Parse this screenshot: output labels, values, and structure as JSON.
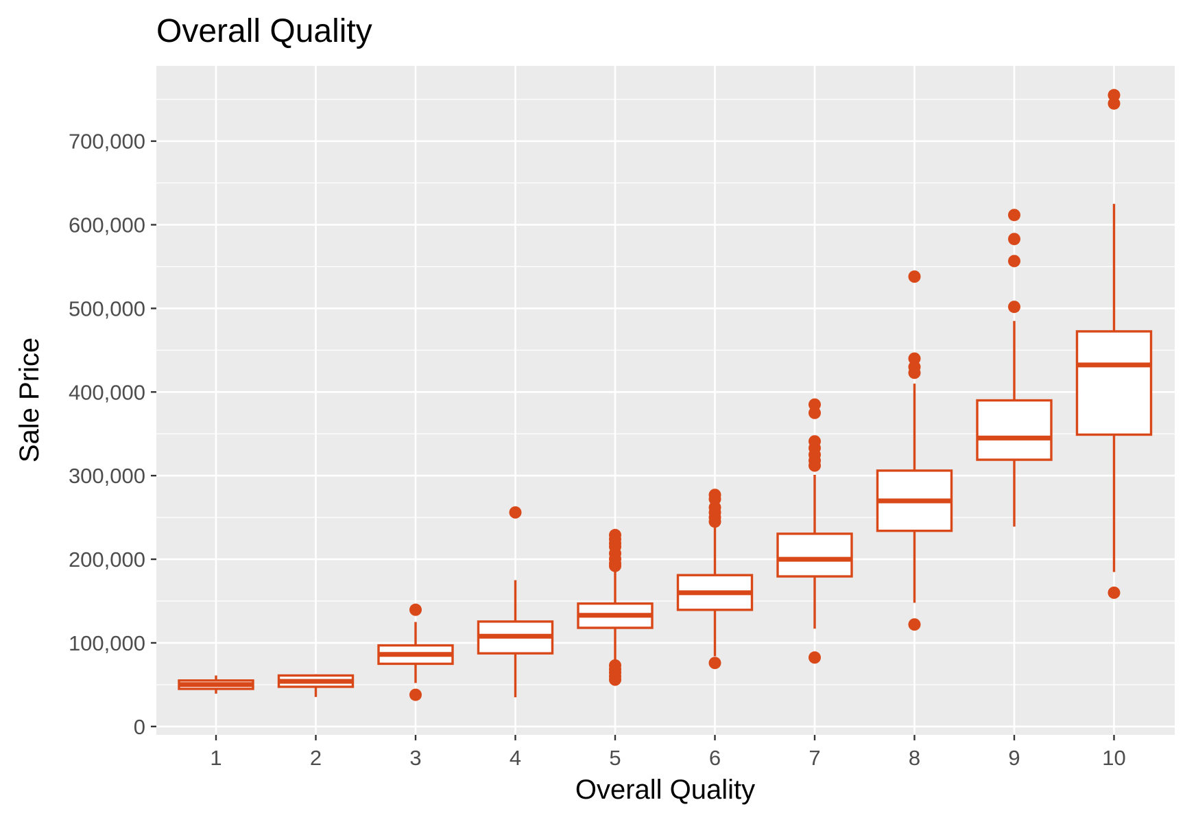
{
  "chart_data": {
    "type": "boxplot",
    "title": "Overall Quality",
    "xlabel": "Overall Quality",
    "ylabel": "Sale Price",
    "categories": [
      "1",
      "2",
      "3",
      "4",
      "5",
      "6",
      "7",
      "8",
      "9",
      "10"
    ],
    "y_ticks": [
      0,
      100000,
      200000,
      300000,
      400000,
      500000,
      600000,
      700000
    ],
    "y_tick_labels": [
      "0",
      "100,000",
      "200,000",
      "300,000",
      "400,000",
      "500,000",
      "600,000",
      "700,000"
    ],
    "ylim": [
      -10000,
      790000
    ],
    "grid": true,
    "colors": {
      "box": "#d94818",
      "panel": "#ebebeb",
      "grid": "#ffffff",
      "axis_text": "#4d4d4d",
      "title_text": "#000000"
    },
    "boxes": [
      {
        "category": "1",
        "min": 39300,
        "q1": 45000,
        "median": 50150,
        "q3": 55000,
        "max": 61000,
        "outliers": []
      },
      {
        "category": "2",
        "min": 35311,
        "q1": 47500,
        "median": 54000,
        "q3": 61000,
        "max": 62500,
        "outliers": []
      },
      {
        "category": "3",
        "min": 52000,
        "q1": 75000,
        "median": 86250,
        "q3": 97000,
        "max": 125000,
        "outliers": [
          139600,
          37900
        ]
      },
      {
        "category": "4",
        "min": 34900,
        "q1": 87500,
        "median": 108000,
        "q3": 125500,
        "max": 175000,
        "outliers": [
          256000
        ]
      },
      {
        "category": "5",
        "min": 76500,
        "q1": 118000,
        "median": 133000,
        "q3": 147000,
        "max": 190000,
        "outliers": [
          228950,
          224000,
          219000,
          215000,
          207000,
          200500,
          195000,
          192000,
          73000,
          68500,
          64500,
          60000,
          55993
        ]
      },
      {
        "category": "6",
        "min": 84000,
        "q1": 139500,
        "median": 160000,
        "q3": 181000,
        "max": 241000,
        "outliers": [
          277000,
          272000,
          262000,
          256000,
          250000,
          245000,
          76000
        ]
      },
      {
        "category": "7",
        "min": 117000,
        "q1": 179500,
        "median": 200000,
        "q3": 230500,
        "max": 301000,
        "outliers": [
          385000,
          375000,
          341000,
          333000,
          325000,
          318000,
          312000,
          82500
        ]
      },
      {
        "category": "8",
        "min": 148000,
        "q1": 234000,
        "median": 269750,
        "q3": 306000,
        "max": 410000,
        "outliers": [
          538000,
          440000,
          430000,
          423000,
          122000
        ]
      },
      {
        "category": "9",
        "min": 239000,
        "q1": 319000,
        "median": 345000,
        "q3": 390000,
        "max": 485000,
        "outliers": [
          611657,
          582933,
          556581,
          501837
        ]
      },
      {
        "category": "10",
        "min": 184750,
        "q1": 349000,
        "median": 432390,
        "q3": 472500,
        "max": 625000,
        "outliers": [
          755000,
          745000,
          160000
        ]
      }
    ]
  }
}
